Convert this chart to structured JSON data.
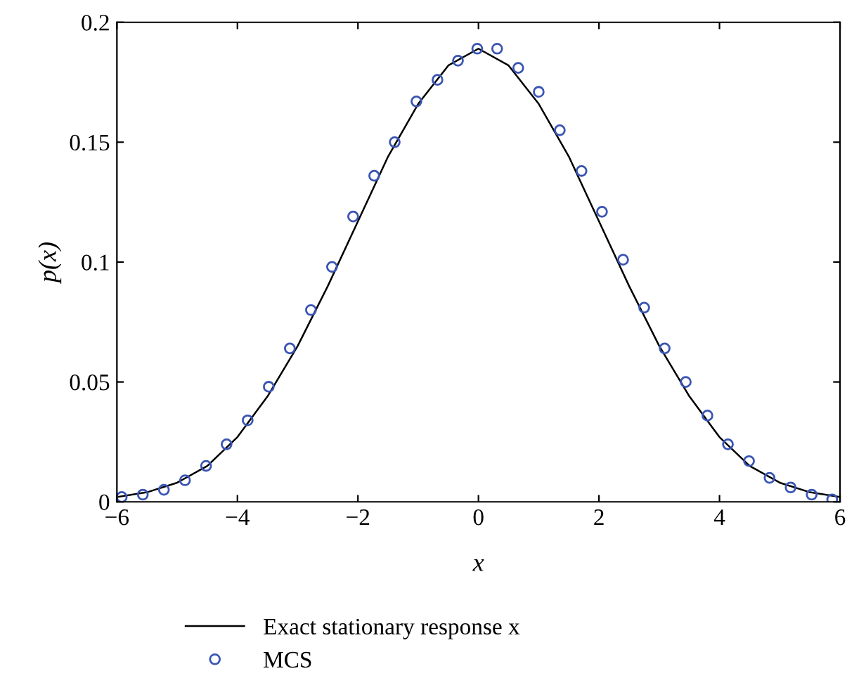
{
  "chart_data": {
    "type": "line",
    "xlabel": "x",
    "ylabel": "p(x)",
    "xlim": [
      -6,
      6
    ],
    "ylim": [
      0,
      0.2
    ],
    "xticks": [
      {
        "value": -6,
        "label": "−6"
      },
      {
        "value": -4,
        "label": "−4"
      },
      {
        "value": -2,
        "label": "−2"
      },
      0,
      2,
      4,
      6
    ],
    "yticks": [
      0,
      0.05,
      0.1,
      0.15,
      0.2
    ],
    "grid": false,
    "legend": "bottom",
    "series": [
      {
        "name": "Exact stationary response x",
        "color": "#000000",
        "line_style": "solid",
        "marker": "none",
        "x": [
          -6,
          -5.5,
          -5,
          -4.5,
          -4,
          -3.5,
          -3,
          -2.5,
          -2,
          -1.5,
          -1,
          -0.5,
          0,
          0.5,
          1,
          1.5,
          2,
          2.5,
          3,
          3.5,
          4,
          4.5,
          5,
          5.5,
          6
        ],
        "values": [
          0.002,
          0.004,
          0.008,
          0.015,
          0.027,
          0.044,
          0.065,
          0.09,
          0.117,
          0.144,
          0.166,
          0.182,
          0.189,
          0.182,
          0.166,
          0.144,
          0.117,
          0.09,
          0.065,
          0.044,
          0.027,
          0.015,
          0.008,
          0.004,
          0.002
        ]
      },
      {
        "name": "MCS",
        "type": "scatter",
        "color": "#3a55b4",
        "marker": "circle",
        "x": [
          -5.92,
          -5.57,
          -5.22,
          -4.87,
          -4.52,
          -4.18,
          -3.83,
          -3.48,
          -3.13,
          -2.78,
          -2.43,
          -2.08,
          -1.73,
          -1.39,
          -1.03,
          -0.68,
          -0.34,
          -0.02,
          0.31,
          0.66,
          1.0,
          1.35,
          1.71,
          2.05,
          2.4,
          2.75,
          3.09,
          3.44,
          3.8,
          4.14,
          4.49,
          4.83,
          5.18,
          5.53,
          5.87
        ],
        "values": [
          0.002,
          0.003,
          0.005,
          0.009,
          0.015,
          0.024,
          0.034,
          0.048,
          0.064,
          0.08,
          0.098,
          0.119,
          0.136,
          0.15,
          0.167,
          0.176,
          0.184,
          0.189,
          0.189,
          0.181,
          0.171,
          0.155,
          0.138,
          0.121,
          0.101,
          0.081,
          0.064,
          0.05,
          0.036,
          0.024,
          0.017,
          0.01,
          0.006,
          0.003,
          0.001
        ]
      }
    ]
  }
}
